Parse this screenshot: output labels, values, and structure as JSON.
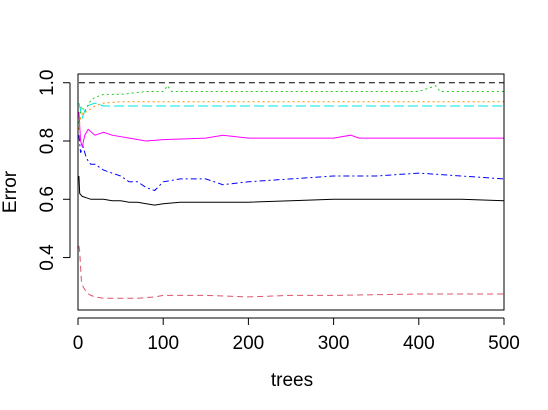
{
  "chart_data": {
    "type": "line",
    "title": "",
    "xlabel": "trees",
    "ylabel": "Error",
    "xlim": [
      0,
      500
    ],
    "ylim": [
      0.22,
      1.03
    ],
    "x_ticks": [
      0,
      100,
      200,
      300,
      400,
      500
    ],
    "y_ticks": [
      0.4,
      0.6,
      0.8,
      1.0
    ],
    "x_tick_labels": [
      "0",
      "100",
      "200",
      "300",
      "400",
      "500"
    ],
    "y_tick_labels": [
      "0.4",
      "0.6",
      "0.8",
      "1.0"
    ],
    "grid": false,
    "legend": "none",
    "series": [
      {
        "color": "#000000",
        "dash": "solid",
        "points": [
          [
            1,
            0.68
          ],
          [
            2,
            0.62
          ],
          [
            5,
            0.61
          ],
          [
            10,
            0.605
          ],
          [
            15,
            0.6
          ],
          [
            20,
            0.6
          ],
          [
            30,
            0.6
          ],
          [
            40,
            0.595
          ],
          [
            50,
            0.595
          ],
          [
            60,
            0.59
          ],
          [
            70,
            0.59
          ],
          [
            80,
            0.585
          ],
          [
            90,
            0.58
          ],
          [
            100,
            0.585
          ],
          [
            120,
            0.59
          ],
          [
            150,
            0.59
          ],
          [
            200,
            0.59
          ],
          [
            250,
            0.595
          ],
          [
            300,
            0.6
          ],
          [
            350,
            0.6
          ],
          [
            400,
            0.6
          ],
          [
            450,
            0.6
          ],
          [
            500,
            0.595
          ]
        ]
      },
      {
        "color": "#df536b",
        "dash": "dashed",
        "points": [
          [
            1,
            0.44
          ],
          [
            2,
            0.42
          ],
          [
            4,
            0.32
          ],
          [
            6,
            0.3
          ],
          [
            10,
            0.28
          ],
          [
            15,
            0.27
          ],
          [
            20,
            0.265
          ],
          [
            30,
            0.26
          ],
          [
            50,
            0.26
          ],
          [
            70,
            0.26
          ],
          [
            90,
            0.265
          ],
          [
            100,
            0.27
          ],
          [
            150,
            0.27
          ],
          [
            200,
            0.265
          ],
          [
            250,
            0.27
          ],
          [
            300,
            0.27
          ],
          [
            400,
            0.275
          ],
          [
            500,
            0.275
          ]
        ]
      },
      {
        "color": "#0000ff",
        "dash": "dashdot",
        "points": [
          [
            1,
            0.82
          ],
          [
            3,
            0.76
          ],
          [
            6,
            0.78
          ],
          [
            10,
            0.74
          ],
          [
            15,
            0.72
          ],
          [
            20,
            0.72
          ],
          [
            30,
            0.7
          ],
          [
            40,
            0.69
          ],
          [
            50,
            0.68
          ],
          [
            60,
            0.66
          ],
          [
            70,
            0.66
          ],
          [
            80,
            0.64
          ],
          [
            90,
            0.63
          ],
          [
            100,
            0.66
          ],
          [
            120,
            0.67
          ],
          [
            150,
            0.67
          ],
          [
            170,
            0.65
          ],
          [
            200,
            0.66
          ],
          [
            250,
            0.67
          ],
          [
            300,
            0.68
          ],
          [
            350,
            0.68
          ],
          [
            400,
            0.69
          ],
          [
            450,
            0.68
          ],
          [
            500,
            0.67
          ]
        ]
      },
      {
        "color": "#ff00ff",
        "dash": "solid",
        "points": [
          [
            1,
            0.9
          ],
          [
            3,
            0.8
          ],
          [
            5,
            0.78
          ],
          [
            8,
            0.82
          ],
          [
            12,
            0.84
          ],
          [
            20,
            0.82
          ],
          [
            30,
            0.83
          ],
          [
            40,
            0.82
          ],
          [
            60,
            0.81
          ],
          [
            80,
            0.8
          ],
          [
            100,
            0.805
          ],
          [
            150,
            0.81
          ],
          [
            170,
            0.82
          ],
          [
            200,
            0.81
          ],
          [
            300,
            0.81
          ],
          [
            320,
            0.82
          ],
          [
            330,
            0.81
          ],
          [
            400,
            0.81
          ],
          [
            500,
            0.81
          ]
        ]
      },
      {
        "color": "#00e5e5",
        "dash": "longdash",
        "points": [
          [
            1,
            0.93
          ],
          [
            5,
            0.88
          ],
          [
            10,
            0.92
          ],
          [
            20,
            0.93
          ],
          [
            30,
            0.92
          ],
          [
            50,
            0.92
          ],
          [
            100,
            0.92
          ],
          [
            200,
            0.92
          ],
          [
            250,
            0.92
          ],
          [
            300,
            0.92
          ],
          [
            400,
            0.92
          ],
          [
            500,
            0.92
          ]
        ]
      },
      {
        "color": "#22cc22",
        "dash": "dotted",
        "points": [
          [
            1,
            0.86
          ],
          [
            4,
            0.92
          ],
          [
            8,
            0.9
          ],
          [
            15,
            0.94
          ],
          [
            20,
            0.95
          ],
          [
            30,
            0.96
          ],
          [
            50,
            0.96
          ],
          [
            80,
            0.97
          ],
          [
            100,
            0.97
          ],
          [
            105,
            0.99
          ],
          [
            110,
            0.97
          ],
          [
            200,
            0.97
          ],
          [
            300,
            0.97
          ],
          [
            400,
            0.97
          ],
          [
            420,
            0.99
          ],
          [
            425,
            0.97
          ],
          [
            500,
            0.97
          ]
        ]
      },
      {
        "color": "#ff8c00",
        "dash": "dotted",
        "points": [
          [
            1,
            0.84
          ],
          [
            3,
            0.88
          ],
          [
            6,
            0.9
          ],
          [
            10,
            0.9
          ],
          [
            15,
            0.91
          ],
          [
            20,
            0.92
          ],
          [
            30,
            0.93
          ],
          [
            50,
            0.935
          ],
          [
            100,
            0.935
          ],
          [
            200,
            0.935
          ],
          [
            300,
            0.935
          ],
          [
            400,
            0.935
          ],
          [
            500,
            0.935
          ]
        ]
      },
      {
        "color": "#000000",
        "dash": "dashed",
        "points": [
          [
            1,
            1.0
          ],
          [
            500,
            1.0
          ]
        ]
      }
    ]
  }
}
